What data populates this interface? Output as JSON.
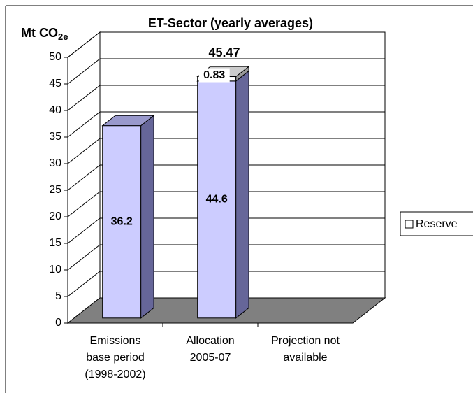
{
  "chart_data": {
    "type": "bar3d-stacked",
    "title": "ET-Sector (yearly averages)",
    "ylabel": "Mt CO",
    "ylabel_subscript": "2e",
    "categories": [
      [
        "Emissions",
        "base period",
        "(1998-2002)"
      ],
      [
        "Allocation",
        "2005-07"
      ],
      [
        "Projection not",
        "available"
      ]
    ],
    "series": [
      {
        "color": "#ccccff",
        "values": [
          36.2,
          44.6,
          null
        ]
      },
      {
        "name": "Reserve",
        "color": "#ffffff",
        "values": [
          null,
          0.83,
          null
        ]
      }
    ],
    "total_label": "45.47",
    "ylim": [
      0,
      50
    ],
    "yticks": [
      0,
      5,
      10,
      15,
      20,
      25,
      30,
      35,
      40,
      45,
      50
    ],
    "grid": true,
    "legend": "right"
  }
}
